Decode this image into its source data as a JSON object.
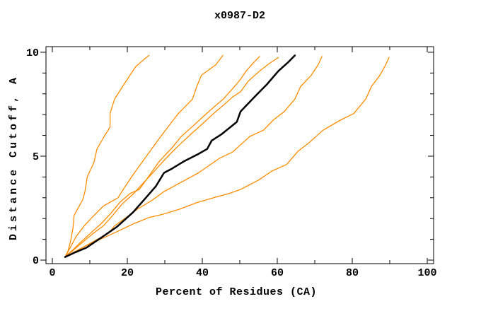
{
  "window": {
    "title": "x0987-D2"
  },
  "chart_data": {
    "type": "line",
    "title": "x0987-D2",
    "xlabel": "Percent of Residues (CA)",
    "ylabel": "Distance Cutoff, A",
    "xlim": [
      -1.7,
      101.7
    ],
    "ylim": [
      -0.17,
      10.27
    ],
    "x_major_ticks": [
      0,
      20,
      40,
      60,
      80,
      100
    ],
    "x_minor_ticks": [
      10,
      30,
      50,
      70,
      90
    ],
    "y_major_ticks": [
      0,
      5,
      10
    ],
    "y_minor_ticks": [
      1,
      2,
      3,
      4,
      6,
      7,
      8,
      9
    ],
    "grid": false,
    "legend": "none",
    "axis_color": "#000000",
    "model_color": "#ff8c00",
    "highlight_color": "#000000",
    "series": [
      {
        "name": "model-1",
        "color": "#ff8c00",
        "width": 1.3,
        "points": [
          [
            3.4,
            0.15
          ],
          [
            4.2,
            0.45
          ],
          [
            4.9,
            0.95
          ],
          [
            5.5,
            1.55
          ],
          [
            5.8,
            2.15
          ],
          [
            8.1,
            2.9
          ],
          [
            8.7,
            3.3
          ],
          [
            9.3,
            4.0
          ],
          [
            11.1,
            4.7
          ],
          [
            11.9,
            5.35
          ],
          [
            14.0,
            6.0
          ],
          [
            15.4,
            6.4
          ],
          [
            15.4,
            7.05
          ],
          [
            16.6,
            7.75
          ],
          [
            19.1,
            8.45
          ],
          [
            22.2,
            9.3
          ],
          [
            24.7,
            9.7
          ],
          [
            25.8,
            9.85
          ]
        ]
      },
      {
        "name": "model-2",
        "color": "#ff8c00",
        "width": 1.3,
        "points": [
          [
            3.5,
            0.2
          ],
          [
            4.9,
            0.65
          ],
          [
            6.4,
            1.15
          ],
          [
            8.5,
            1.65
          ],
          [
            11.1,
            2.15
          ],
          [
            13.6,
            2.6
          ],
          [
            17.5,
            3.0
          ],
          [
            19.1,
            3.45
          ],
          [
            21.5,
            4.1
          ],
          [
            24.7,
            4.9
          ],
          [
            28.5,
            5.85
          ],
          [
            32.3,
            6.75
          ],
          [
            33.6,
            7.05
          ],
          [
            37.4,
            7.75
          ],
          [
            38.5,
            8.35
          ],
          [
            39.8,
            8.9
          ],
          [
            43.6,
            9.4
          ],
          [
            45.5,
            9.85
          ]
        ]
      },
      {
        "name": "model-3",
        "color": "#ff8c00",
        "width": 1.3,
        "points": [
          [
            3.6,
            0.2
          ],
          [
            5.2,
            0.45
          ],
          [
            7.5,
            0.85
          ],
          [
            10.5,
            1.35
          ],
          [
            13.0,
            1.75
          ],
          [
            15.6,
            2.25
          ],
          [
            18.1,
            2.8
          ],
          [
            20.7,
            3.2
          ],
          [
            23.2,
            3.4
          ],
          [
            25.2,
            3.9
          ],
          [
            28.3,
            4.7
          ],
          [
            29.8,
            5.0
          ],
          [
            31.9,
            5.4
          ],
          [
            34.4,
            5.95
          ],
          [
            37.5,
            6.45
          ],
          [
            40.5,
            6.95
          ],
          [
            43.0,
            7.35
          ],
          [
            45.6,
            7.75
          ],
          [
            48.1,
            8.25
          ],
          [
            50.2,
            8.7
          ],
          [
            51.7,
            9.1
          ],
          [
            53.7,
            9.5
          ],
          [
            55.3,
            9.8
          ]
        ]
      },
      {
        "name": "model-4",
        "color": "#ff8c00",
        "width": 1.3,
        "points": [
          [
            3.6,
            0.2
          ],
          [
            5.4,
            0.45
          ],
          [
            8.0,
            0.85
          ],
          [
            11.0,
            1.3
          ],
          [
            13.6,
            1.65
          ],
          [
            16.1,
            2.15
          ],
          [
            18.6,
            2.7
          ],
          [
            21.7,
            3.2
          ],
          [
            24.2,
            3.7
          ],
          [
            26.8,
            4.2
          ],
          [
            28.8,
            4.6
          ],
          [
            31.4,
            5.1
          ],
          [
            33.9,
            5.55
          ],
          [
            36.9,
            6.05
          ],
          [
            40.0,
            6.55
          ],
          [
            43.0,
            7.05
          ],
          [
            45.6,
            7.45
          ],
          [
            48.1,
            7.85
          ],
          [
            50.2,
            8.1
          ],
          [
            52.2,
            8.6
          ],
          [
            55.3,
            9.1
          ],
          [
            57.8,
            9.45
          ],
          [
            60.3,
            9.75
          ]
        ]
      },
      {
        "name": "model-5",
        "color": "#ff8c00",
        "width": 1.3,
        "points": [
          [
            3.7,
            0.2
          ],
          [
            6.0,
            0.4
          ],
          [
            9.5,
            0.75
          ],
          [
            13.0,
            1.1
          ],
          [
            15.0,
            1.3
          ],
          [
            16.6,
            1.65
          ],
          [
            19.7,
            2.05
          ],
          [
            22.7,
            2.45
          ],
          [
            26.8,
            2.9
          ],
          [
            29.8,
            3.3
          ],
          [
            32.9,
            3.6
          ],
          [
            39.0,
            4.2
          ],
          [
            44.6,
            4.9
          ],
          [
            48.1,
            5.2
          ],
          [
            50.2,
            5.55
          ],
          [
            52.7,
            5.95
          ],
          [
            56.3,
            6.25
          ],
          [
            59.0,
            6.75
          ],
          [
            61.9,
            7.15
          ],
          [
            64.7,
            7.75
          ],
          [
            66.2,
            8.35
          ],
          [
            69.1,
            8.9
          ],
          [
            70.9,
            9.4
          ],
          [
            71.9,
            9.8
          ]
        ]
      },
      {
        "name": "model-6",
        "color": "#ff8c00",
        "width": 1.3,
        "points": [
          [
            3.8,
            0.2
          ],
          [
            5.4,
            0.35
          ],
          [
            8.5,
            0.65
          ],
          [
            11.5,
            0.9
          ],
          [
            14.6,
            1.15
          ],
          [
            17.6,
            1.4
          ],
          [
            21.7,
            1.75
          ],
          [
            25.8,
            2.05
          ],
          [
            29.4,
            2.2
          ],
          [
            33.9,
            2.45
          ],
          [
            38.3,
            2.75
          ],
          [
            43.0,
            3.0
          ],
          [
            47.1,
            3.2
          ],
          [
            50.2,
            3.4
          ],
          [
            55.0,
            3.85
          ],
          [
            58.7,
            4.3
          ],
          [
            62.5,
            4.6
          ],
          [
            65.6,
            5.25
          ],
          [
            68.5,
            5.65
          ],
          [
            72.2,
            6.25
          ],
          [
            77.0,
            6.75
          ],
          [
            80.4,
            7.05
          ],
          [
            83.6,
            7.75
          ],
          [
            85.1,
            8.35
          ],
          [
            87.4,
            8.9
          ],
          [
            88.8,
            9.35
          ],
          [
            89.8,
            9.75
          ]
        ]
      },
      {
        "name": "highlighted-model",
        "color": "#000000",
        "width": 2.5,
        "points": [
          [
            3.4,
            0.15
          ],
          [
            5.8,
            0.35
          ],
          [
            9.1,
            0.6
          ],
          [
            12.8,
            1.05
          ],
          [
            17.2,
            1.6
          ],
          [
            21.5,
            2.3
          ],
          [
            24.7,
            2.95
          ],
          [
            27.6,
            3.55
          ],
          [
            29.8,
            4.2
          ],
          [
            31.9,
            4.4
          ],
          [
            35.1,
            4.75
          ],
          [
            38.9,
            5.1
          ],
          [
            41.3,
            5.35
          ],
          [
            42.5,
            5.75
          ],
          [
            45.1,
            6.05
          ],
          [
            49.2,
            6.65
          ],
          [
            50.2,
            7.15
          ],
          [
            53.9,
            7.85
          ],
          [
            57.2,
            8.45
          ],
          [
            60.3,
            9.1
          ],
          [
            62.8,
            9.5
          ],
          [
            64.7,
            9.85
          ]
        ]
      }
    ]
  }
}
